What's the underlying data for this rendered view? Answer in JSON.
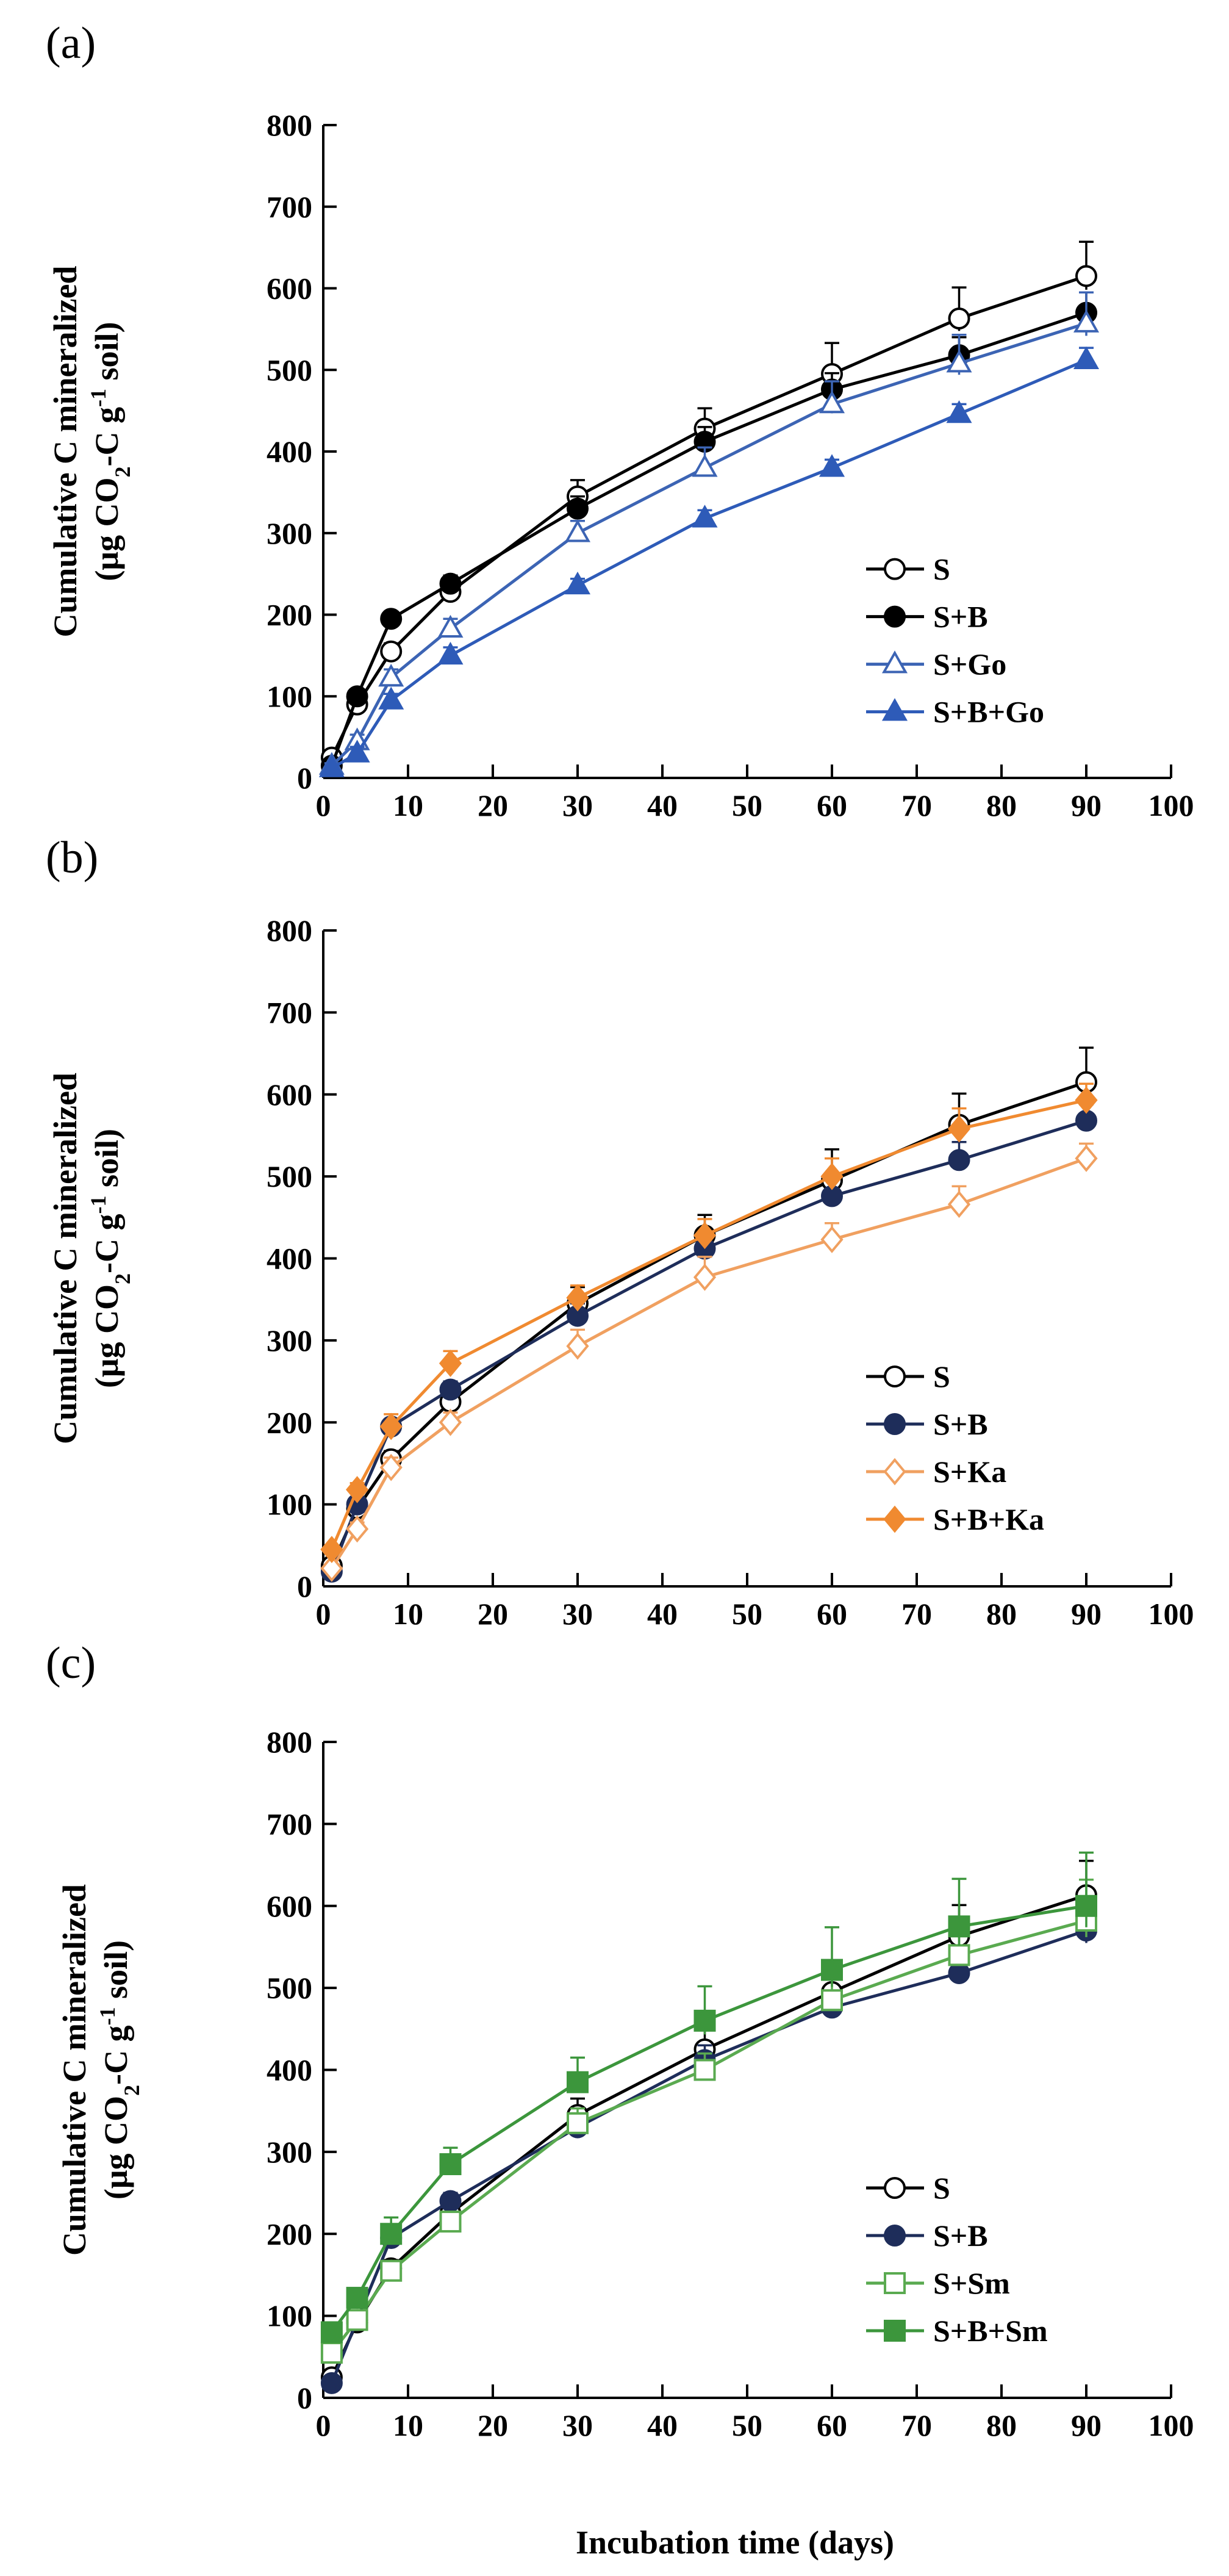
{
  "figure": {
    "xlabel": "Incubation time (days)"
  },
  "chart_data": [
    {
      "type": "line",
      "panel_label": "(a)",
      "ylabel_line1": "Cumulative  C mineralized",
      "ylabel_line2": [
        "(μg CO",
        "2",
        "-C g",
        "-1",
        " soil)"
      ],
      "xlim": [
        0,
        100
      ],
      "ylim": [
        0,
        800
      ],
      "x_ticks": [
        0,
        10,
        20,
        30,
        40,
        50,
        60,
        70,
        80,
        90,
        100
      ],
      "y_ticks": [
        0,
        100,
        200,
        300,
        400,
        500,
        600,
        700,
        800
      ],
      "x": [
        1,
        4,
        8,
        15,
        30,
        45,
        60,
        75,
        90
      ],
      "legend_position": "lower-right",
      "series": [
        {
          "name": "S",
          "color": "#000000",
          "marker": "circle",
          "filled": false,
          "values": [
            25,
            90,
            155,
            228,
            345,
            428,
            495,
            563,
            615
          ],
          "errors": [
            5,
            8,
            10,
            12,
            20,
            25,
            38,
            38,
            42
          ]
        },
        {
          "name": "S+B",
          "color": "#000000",
          "marker": "circle",
          "filled": true,
          "values": [
            15,
            100,
            195,
            238,
            330,
            412,
            476,
            518,
            570
          ],
          "errors": [
            5,
            8,
            8,
            10,
            15,
            18,
            20,
            22,
            25
          ]
        },
        {
          "name": "S+Go",
          "color": "#3c64b4",
          "marker": "triangle",
          "filled": false,
          "values": [
            15,
            45,
            123,
            183,
            300,
            380,
            458,
            508,
            557
          ],
          "errors": [
            3,
            8,
            10,
            12,
            15,
            25,
            28,
            35,
            38
          ]
        },
        {
          "name": "S+B+Go",
          "color": "#2e5bb8",
          "marker": "triangle",
          "filled": true,
          "values": [
            12,
            30,
            95,
            150,
            236,
            318,
            380,
            446,
            512
          ],
          "errors": [
            3,
            8,
            8,
            10,
            8,
            10,
            10,
            12,
            15
          ]
        }
      ]
    },
    {
      "type": "line",
      "panel_label": "(b)",
      "ylabel_line1": "Cumulative  C mineralized",
      "ylabel_line2": [
        "(μg CO",
        "2",
        "-C g",
        "-1",
        " soil)"
      ],
      "xlim": [
        0,
        100
      ],
      "ylim": [
        0,
        800
      ],
      "x_ticks": [
        0,
        10,
        20,
        30,
        40,
        50,
        60,
        70,
        80,
        90,
        100
      ],
      "y_ticks": [
        0,
        100,
        200,
        300,
        400,
        500,
        600,
        700,
        800
      ],
      "x": [
        1,
        4,
        8,
        15,
        30,
        45,
        60,
        75,
        90
      ],
      "legend_position": "lower-right",
      "series": [
        {
          "name": "S",
          "color": "#000000",
          "marker": "circle",
          "filled": false,
          "values": [
            25,
            95,
            155,
            225,
            345,
            428,
            495,
            563,
            615
          ],
          "errors": [
            5,
            8,
            10,
            12,
            20,
            25,
            38,
            38,
            42
          ]
        },
        {
          "name": "S+B",
          "color": "#1e2d5a",
          "marker": "circle",
          "filled": true,
          "values": [
            18,
            100,
            195,
            240,
            330,
            412,
            476,
            520,
            568
          ],
          "errors": [
            5,
            8,
            8,
            10,
            15,
            18,
            20,
            22,
            20
          ]
        },
        {
          "name": "S+Ka",
          "color": "#f0a060",
          "marker": "diamond",
          "filled": false,
          "values": [
            22,
            70,
            145,
            200,
            293,
            377,
            423,
            466,
            522
          ],
          "errors": [
            5,
            8,
            12,
            12,
            20,
            25,
            20,
            22,
            18
          ]
        },
        {
          "name": "S+B+Ka",
          "color": "#f08a30",
          "marker": "diamond",
          "filled": true,
          "values": [
            45,
            118,
            195,
            272,
            352,
            428,
            500,
            558,
            593
          ],
          "errors": [
            5,
            8,
            15,
            15,
            15,
            20,
            22,
            25,
            20
          ]
        }
      ]
    },
    {
      "type": "line",
      "panel_label": "(c)",
      "ylabel_line1": "Cumulative  C mineralized",
      "ylabel_line2": [
        "(μg CO",
        "2",
        "-C g",
        "-1",
        " soil)"
      ],
      "xlim": [
        0,
        100
      ],
      "ylim": [
        0,
        800
      ],
      "x_ticks": [
        0,
        10,
        20,
        30,
        40,
        50,
        60,
        70,
        80,
        90,
        100
      ],
      "y_ticks": [
        0,
        100,
        200,
        300,
        400,
        500,
        600,
        700,
        800
      ],
      "x": [
        1,
        4,
        8,
        15,
        30,
        45,
        60,
        75,
        90
      ],
      "legend_position": "lower-right",
      "series": [
        {
          "name": "S",
          "color": "#000000",
          "marker": "circle",
          "filled": false,
          "values": [
            25,
            92,
            158,
            225,
            345,
            425,
            495,
            563,
            613
          ],
          "errors": [
            5,
            8,
            10,
            12,
            20,
            25,
            38,
            38,
            42
          ]
        },
        {
          "name": "S+B",
          "color": "#1e2d5a",
          "marker": "circle",
          "filled": true,
          "values": [
            18,
            95,
            195,
            240,
            330,
            412,
            476,
            518,
            570
          ],
          "errors": [
            5,
            8,
            8,
            10,
            15,
            18,
            15,
            10,
            38
          ]
        },
        {
          "name": "S+Sm",
          "color": "#5aaa50",
          "marker": "square",
          "filled": false,
          "values": [
            55,
            95,
            155,
            215,
            335,
            400,
            485,
            540,
            582
          ],
          "errors": [
            5,
            8,
            10,
            12,
            18,
            20,
            25,
            30,
            50
          ]
        },
        {
          "name": "S+B+Sm",
          "color": "#3c963c",
          "marker": "square",
          "filled": true,
          "values": [
            80,
            122,
            200,
            285,
            385,
            460,
            522,
            575,
            600
          ],
          "errors": [
            5,
            8,
            20,
            20,
            30,
            42,
            52,
            58,
            65
          ]
        }
      ]
    }
  ]
}
